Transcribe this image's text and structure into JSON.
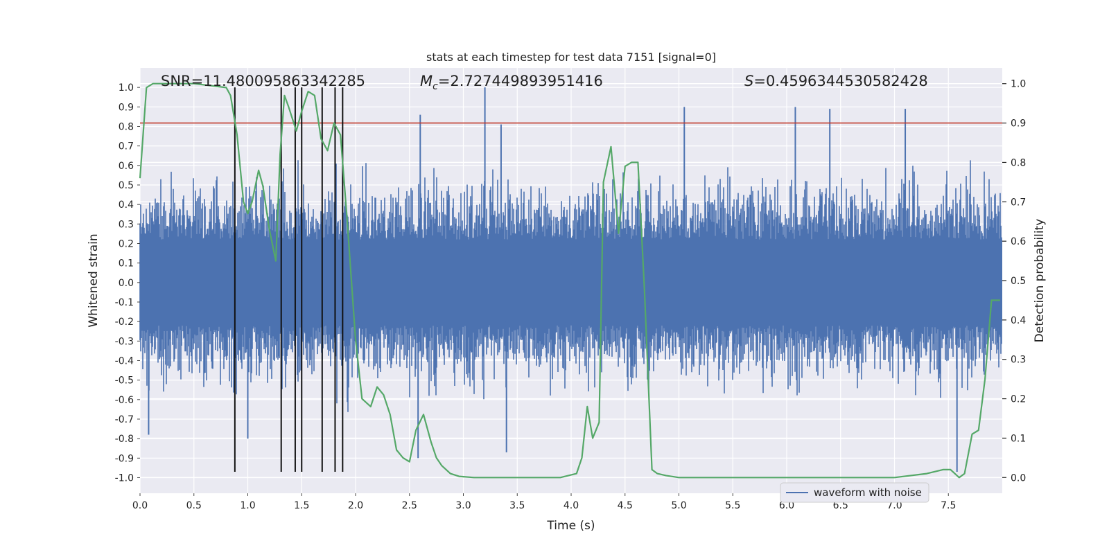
{
  "chart_data": {
    "type": "line",
    "title": "stats at each timestep for test data 7151 [signal=0]",
    "xlabel": "Time (s)",
    "ylabel": "Whitened strain",
    "y2label": "Detection probability",
    "xlim": [
      0.0,
      8.0
    ],
    "ylim": [
      -1.08,
      1.1
    ],
    "y2lim": [
      -0.04,
      1.04
    ],
    "x_ticks": [
      0.0,
      0.5,
      1.0,
      1.5,
      2.0,
      2.5,
      3.0,
      3.5,
      4.0,
      4.5,
      5.0,
      5.5,
      6.0,
      6.5,
      7.0,
      7.5
    ],
    "x_tick_labels": [
      "0.0",
      "0.5",
      "1.0",
      "1.5",
      "2.0",
      "2.5",
      "3.0",
      "3.5",
      "4.0",
      "4.5",
      "5.0",
      "5.5",
      "6.0",
      "6.5",
      "7.0",
      "7.5"
    ],
    "y_ticks": [
      1.0,
      0.9,
      0.8,
      0.7,
      0.6,
      0.5,
      0.4,
      0.3,
      0.2,
      0.1,
      0.0,
      -0.1,
      -0.2,
      -0.3,
      -0.4,
      -0.5,
      -0.6,
      -0.7,
      -0.8,
      -0.9,
      -1.0
    ],
    "y_tick_labels": [
      "1.0",
      "0.9",
      "0.8",
      "0.7",
      "0.6",
      "0.5",
      "0.4",
      "0.3",
      "0.2",
      "0.1",
      "0.0",
      "-0.1",
      "-0.2",
      "-0.3",
      "-0.4",
      "-0.5",
      "-0.6",
      "-0.7",
      "-0.8",
      "-0.9",
      "-1.0"
    ],
    "y2_ticks": [
      1.0,
      0.9,
      0.8,
      0.7,
      0.6,
      0.5,
      0.4,
      0.3,
      0.2,
      0.1,
      0.0
    ],
    "y2_tick_labels": [
      "1.0",
      "0.9",
      "0.8",
      "0.7",
      "0.6",
      "0.5",
      "0.4",
      "0.3",
      "0.2",
      "0.1",
      "0.0"
    ],
    "threshold": {
      "value": 0.9,
      "axis": "y2",
      "color": "#c0392b"
    },
    "annotations": {
      "snr": "SNR=11.480095863342285",
      "mc_symbol": "M",
      "mc_subscript": "c",
      "mc_value": "=2.727449893951416",
      "s_symbol": "S",
      "s_value": "=0.4596344530582428"
    },
    "event_markers": {
      "times": [
        0.88,
        1.31,
        1.44,
        1.5,
        1.69,
        1.81,
        1.88
      ],
      "y_range": [
        -0.97,
        1.0
      ],
      "color": "#111111"
    },
    "waveform": {
      "name": "waveform with noise",
      "color": "#4c72b0",
      "typical_amplitude": 0.4,
      "spikes": [
        {
          "x": 3.2,
          "y": 1.0
        },
        {
          "x": 2.6,
          "y": 0.86
        },
        {
          "x": 3.35,
          "y": 0.81
        },
        {
          "x": 5.05,
          "y": 0.9
        },
        {
          "x": 6.08,
          "y": 0.9
        },
        {
          "x": 6.4,
          "y": 0.89
        },
        {
          "x": 7.1,
          "y": 0.89
        },
        {
          "x": 7.58,
          "y": -0.97
        },
        {
          "x": 3.4,
          "y": -0.87
        },
        {
          "x": 2.58,
          "y": -0.9
        },
        {
          "x": 1.0,
          "y": -0.8
        },
        {
          "x": 0.08,
          "y": -0.78
        }
      ]
    },
    "probability": {
      "name": "detection probability",
      "color": "#55a868",
      "x": [
        0.0,
        0.06,
        0.12,
        0.5,
        0.8,
        0.84,
        0.9,
        0.96,
        1.0,
        1.04,
        1.1,
        1.14,
        1.2,
        1.26,
        1.3,
        1.34,
        1.38,
        1.45,
        1.5,
        1.56,
        1.62,
        1.68,
        1.74,
        1.8,
        1.86,
        1.92,
        2.0,
        2.06,
        2.14,
        2.2,
        2.26,
        2.32,
        2.38,
        2.44,
        2.5,
        2.56,
        2.63,
        2.7,
        2.75,
        2.8,
        2.88,
        2.96,
        3.1,
        3.5,
        3.9,
        4.05,
        4.1,
        4.15,
        4.2,
        4.26,
        4.3,
        4.37,
        4.44,
        4.5,
        4.56,
        4.62,
        4.68,
        4.75,
        4.8,
        4.88,
        5.0,
        5.5,
        6.0,
        6.5,
        7.0,
        7.3,
        7.45,
        7.52,
        7.6,
        7.65,
        7.72,
        7.78,
        7.84,
        7.9,
        7.94,
        7.98
      ],
      "y": [
        0.76,
        0.99,
        1.0,
        1.0,
        0.99,
        0.97,
        0.87,
        0.7,
        0.67,
        0.7,
        0.78,
        0.74,
        0.63,
        0.55,
        0.82,
        0.97,
        0.94,
        0.88,
        0.93,
        0.98,
        0.97,
        0.86,
        0.83,
        0.9,
        0.87,
        0.66,
        0.35,
        0.2,
        0.18,
        0.23,
        0.21,
        0.16,
        0.07,
        0.05,
        0.04,
        0.12,
        0.16,
        0.09,
        0.05,
        0.03,
        0.01,
        0.003,
        0.0,
        0.0,
        0.0,
        0.01,
        0.05,
        0.18,
        0.1,
        0.14,
        0.75,
        0.84,
        0.62,
        0.79,
        0.8,
        0.8,
        0.48,
        0.02,
        0.01,
        0.005,
        0.0,
        0.0,
        0.0,
        0.0,
        0.0,
        0.01,
        0.02,
        0.02,
        0.0,
        0.01,
        0.11,
        0.12,
        0.25,
        0.45,
        0.45,
        0.45
      ]
    },
    "legend": {
      "placement": "lower-right",
      "entries": [
        "waveform with noise"
      ]
    }
  }
}
